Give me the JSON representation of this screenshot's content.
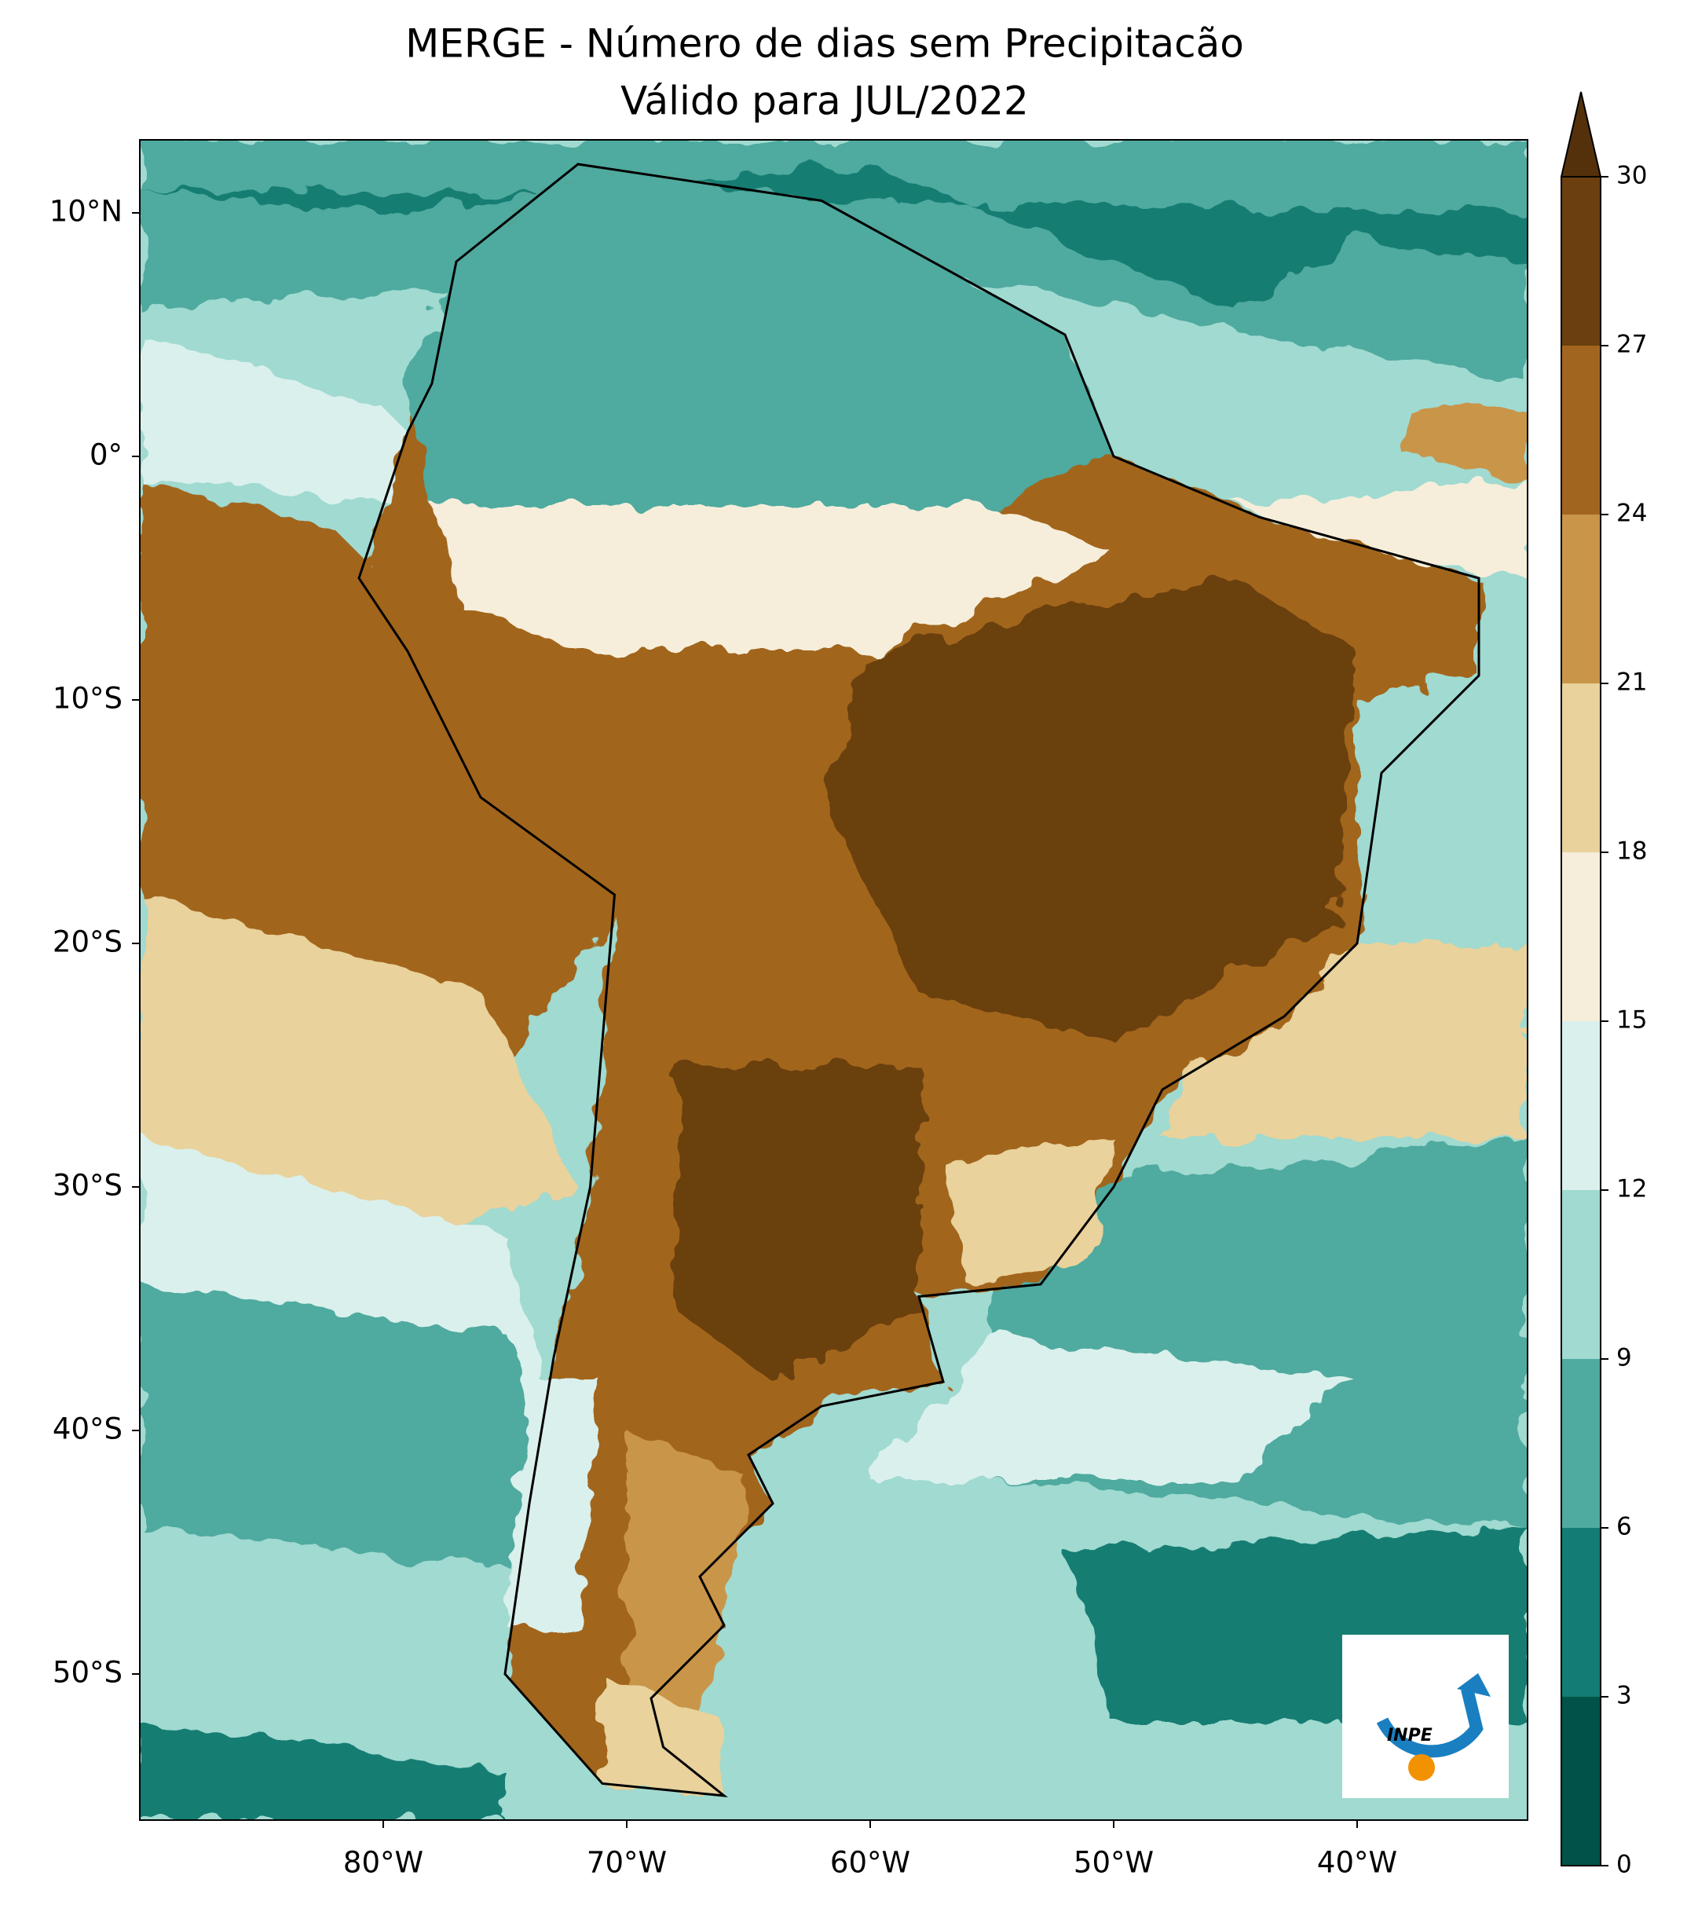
{
  "map": {
    "title": "MERGE - Número de dias sem Precipitacão",
    "subtitle": "Válido para JUL/2022",
    "xlim": [
      -90,
      -33
    ],
    "ylim": [
      -56,
      13
    ],
    "xticks": [
      {
        "value": -80,
        "label": "80°W"
      },
      {
        "value": -70,
        "label": "70°W"
      },
      {
        "value": -60,
        "label": "60°W"
      },
      {
        "value": -50,
        "label": "50°W"
      },
      {
        "value": -40,
        "label": "40°W"
      }
    ],
    "yticks": [
      {
        "value": 10,
        "label": "10°N"
      },
      {
        "value": 0,
        "label": "0°"
      },
      {
        "value": -10,
        "label": "10°S"
      },
      {
        "value": -20,
        "label": "20°S"
      },
      {
        "value": -30,
        "label": "30°S"
      },
      {
        "value": -40,
        "label": "40°S"
      },
      {
        "value": -50,
        "label": "50°S"
      }
    ],
    "colorbar": {
      "lim": [
        0,
        30
      ],
      "ticks": [
        0,
        3,
        6,
        9,
        12,
        15,
        18,
        21,
        24,
        27,
        30
      ],
      "colors": [
        "#01534a",
        "#137d73",
        "#4faa9f",
        "#a0dad1",
        "#daf0ec",
        "#f6eedb",
        "#e9d29b",
        "#c99549",
        "#a2651f",
        "#6b3f0f"
      ],
      "extend": "max",
      "extend_color": "#55310b"
    },
    "logo": "INPE"
  }
}
